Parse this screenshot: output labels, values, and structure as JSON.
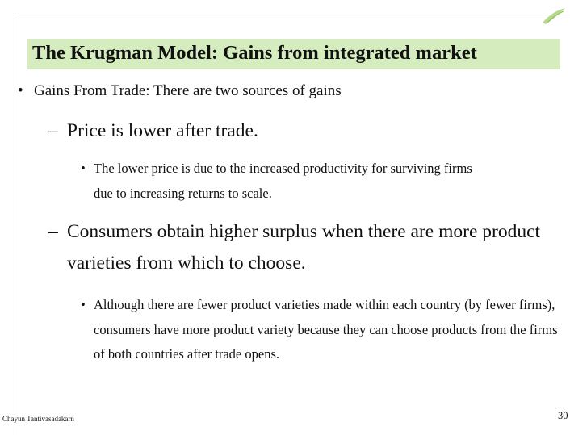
{
  "slide": {
    "title": "The Krugman Model: Gains from integrated market",
    "bullets": [
      {
        "text": "Gains From Trade: There are two sources of gains",
        "items": [
          {
            "text": "Price is lower after trade.",
            "items": [
              "The lower price is due to the increased productivity for surviving firms due to increasing returns to scale."
            ]
          },
          {
            "text": "Consumers obtain higher surplus when there are more product varieties from which to choose.",
            "items": [
              "Although there are fewer product varieties made within each country (by fewer firms), consumers have more product variety because they can choose products from the firms of both countries after trade opens."
            ]
          }
        ]
      }
    ],
    "footer": "Chayun Tantivasadakarn",
    "page_number": "30"
  }
}
